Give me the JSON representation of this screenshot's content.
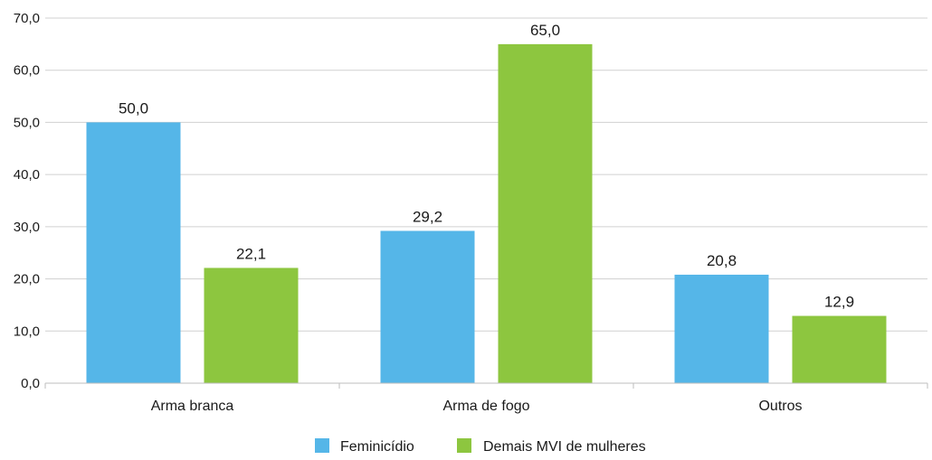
{
  "chart_data": {
    "type": "bar",
    "categories": [
      "Arma branca",
      "Arma de fogo",
      "Outros"
    ],
    "series": [
      {
        "name": "Feminicídio",
        "values": [
          50.0,
          29.2,
          20.8
        ],
        "color": "#55b6e8",
        "labels": [
          "50,0",
          "29,2",
          "20,8"
        ]
      },
      {
        "name": "Demais MVI de mulheres",
        "values": [
          22.1,
          65.0,
          12.9
        ],
        "color": "#8dc63f",
        "labels": [
          "22,1",
          "65,0",
          "12,9"
        ]
      }
    ],
    "ylim": [
      0,
      70
    ],
    "yticks": [
      0,
      10,
      20,
      30,
      40,
      50,
      60,
      70
    ],
    "ytick_labels": [
      "0,0",
      "10,0",
      "20,0",
      "30,0",
      "40,0",
      "50,0",
      "60,0",
      "70,0"
    ],
    "grid": true,
    "legend_position": "bottom-center",
    "gridline_color": "#d0d0d0"
  }
}
